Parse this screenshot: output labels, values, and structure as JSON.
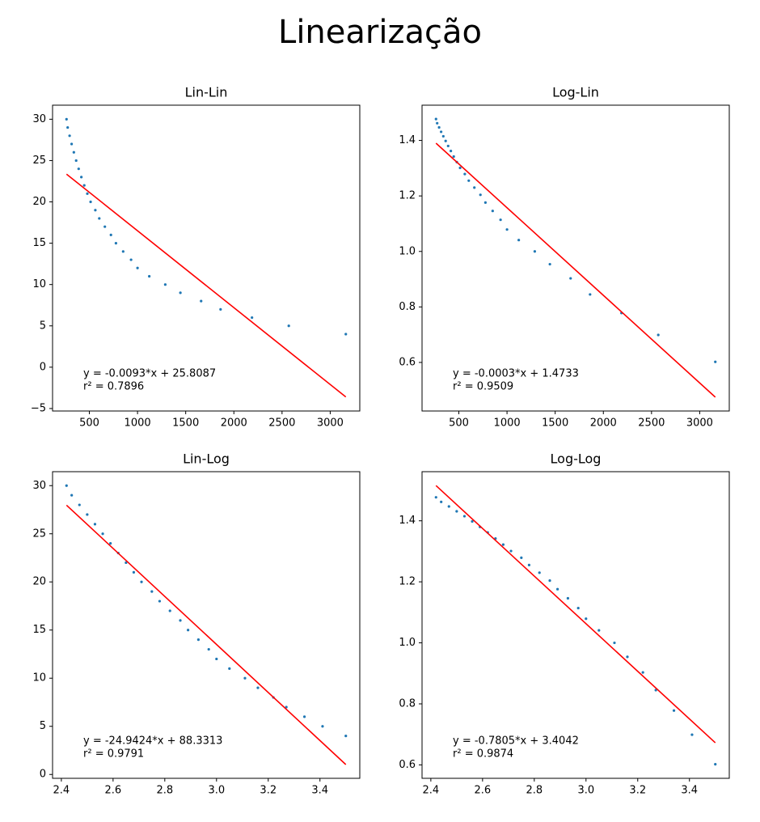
{
  "title": "Linearização",
  "chart_data": [
    {
      "type": "scatter",
      "title": "Lin-Lin",
      "color": "#1f77b4",
      "x": [
        263,
        275,
        295,
        316,
        339,
        363,
        389,
        417,
        447,
        479,
        513,
        562,
        603,
        661,
        724,
        776,
        851,
        933,
        1000,
        1122,
        1288,
        1445,
        1660,
        1862,
        2188,
        2570,
        3162
      ],
      "values": [
        30,
        29,
        28,
        27,
        26,
        25,
        24,
        23,
        22,
        21,
        20,
        19,
        18,
        17,
        16,
        15,
        14,
        13,
        12,
        11,
        10,
        9,
        8,
        7,
        6,
        5,
        4
      ],
      "fit": {
        "x": [
          263,
          3162
        ],
        "values": [
          23.36,
          -3.6
        ],
        "color": "#ff0000"
      },
      "annotations": [
        "y = -0.0093*x + 25.8087",
        "r² = 0.7896"
      ],
      "xlim": [
        118,
        3307
      ],
      "ylim": [
        -5.3,
        31.7
      ],
      "xticks": [
        500,
        1000,
        1500,
        2000,
        2500,
        3000
      ],
      "yticks": [
        {
          "value": -5,
          "label": "−5"
        },
        0,
        5,
        10,
        15,
        20,
        25,
        30
      ]
    },
    {
      "type": "scatter",
      "title": "Log-Lin",
      "color": "#1f77b4",
      "x": [
        263,
        275,
        295,
        316,
        339,
        363,
        389,
        417,
        447,
        479,
        513,
        562,
        603,
        661,
        724,
        776,
        851,
        933,
        1000,
        1122,
        1288,
        1445,
        1660,
        1862,
        2188,
        2570,
        3162
      ],
      "values": [
        1.477,
        1.462,
        1.447,
        1.431,
        1.415,
        1.398,
        1.38,
        1.362,
        1.342,
        1.322,
        1.301,
        1.279,
        1.255,
        1.23,
        1.204,
        1.176,
        1.146,
        1.114,
        1.079,
        1.041,
        1.0,
        0.954,
        0.903,
        0.845,
        0.778,
        0.699,
        0.602
      ],
      "fit": {
        "x": [
          263,
          3162
        ],
        "values": [
          1.39,
          0.475
        ],
        "color": "#ff0000"
      },
      "annotations": [
        "y = -0.0003*x + 1.4733",
        "r² = 0.9509"
      ],
      "xlim": [
        118,
        3307
      ],
      "ylim": [
        0.425,
        1.527
      ],
      "xticks": [
        500,
        1000,
        1500,
        2000,
        2500,
        3000
      ],
      "yticks": [
        0.6,
        0.8,
        {
          "value": 1,
          "label": "1.0"
        },
        1.2,
        1.4
      ]
    },
    {
      "type": "scatter",
      "title": "Lin-Log",
      "color": "#1f77b4",
      "x": [
        2.42,
        2.44,
        2.47,
        2.5,
        2.53,
        2.56,
        2.59,
        2.62,
        2.65,
        2.68,
        2.71,
        2.75,
        2.78,
        2.82,
        2.86,
        2.89,
        2.93,
        2.97,
        3.0,
        3.05,
        3.11,
        3.16,
        3.22,
        3.27,
        3.34,
        3.41,
        3.5
      ],
      "values": [
        30,
        29,
        28,
        27,
        26,
        25,
        24,
        23,
        22,
        21,
        20,
        19,
        18,
        17,
        16,
        15,
        14,
        13,
        12,
        11,
        10,
        9,
        8,
        7,
        6,
        5,
        4
      ],
      "fit": {
        "x": [
          2.42,
          3.5
        ],
        "values": [
          27.97,
          1.03
        ],
        "color": "#ff0000"
      },
      "annotations": [
        "y = -24.9424*x + 88.3313",
        "r² = 0.9791"
      ],
      "xlim": [
        2.366,
        3.554
      ],
      "ylim": [
        -0.4,
        31.45
      ],
      "xticks": [
        2.4,
        2.6,
        2.8,
        {
          "value": 3,
          "label": "3.0"
        },
        3.2,
        3.4
      ],
      "yticks": [
        0,
        5,
        10,
        15,
        20,
        25,
        30
      ]
    },
    {
      "type": "scatter",
      "title": "Log-Log",
      "color": "#1f77b4",
      "x": [
        2.42,
        2.44,
        2.47,
        2.5,
        2.53,
        2.56,
        2.59,
        2.62,
        2.65,
        2.68,
        2.71,
        2.75,
        2.78,
        2.82,
        2.86,
        2.89,
        2.93,
        2.97,
        3.0,
        3.05,
        3.11,
        3.16,
        3.22,
        3.27,
        3.34,
        3.41,
        3.5
      ],
      "values": [
        1.477,
        1.462,
        1.447,
        1.431,
        1.415,
        1.398,
        1.38,
        1.362,
        1.342,
        1.322,
        1.301,
        1.279,
        1.255,
        1.23,
        1.204,
        1.176,
        1.146,
        1.114,
        1.079,
        1.041,
        1.0,
        0.954,
        0.903,
        0.845,
        0.778,
        0.699,
        0.602
      ],
      "fit": {
        "x": [
          2.42,
          3.5
        ],
        "values": [
          1.5154,
          0.6725
        ],
        "color": "#ff0000"
      },
      "annotations": [
        "y = -0.7805*x + 3.4042",
        "r² = 0.9874"
      ],
      "xlim": [
        2.366,
        3.554
      ],
      "ylim": [
        0.556,
        1.561
      ],
      "xticks": [
        2.4,
        2.6,
        2.8,
        {
          "value": 3,
          "label": "3.0"
        },
        3.2,
        3.4
      ],
      "yticks": [
        0.6,
        0.8,
        {
          "value": 1,
          "label": "1.0"
        },
        1.2,
        1.4
      ]
    }
  ]
}
